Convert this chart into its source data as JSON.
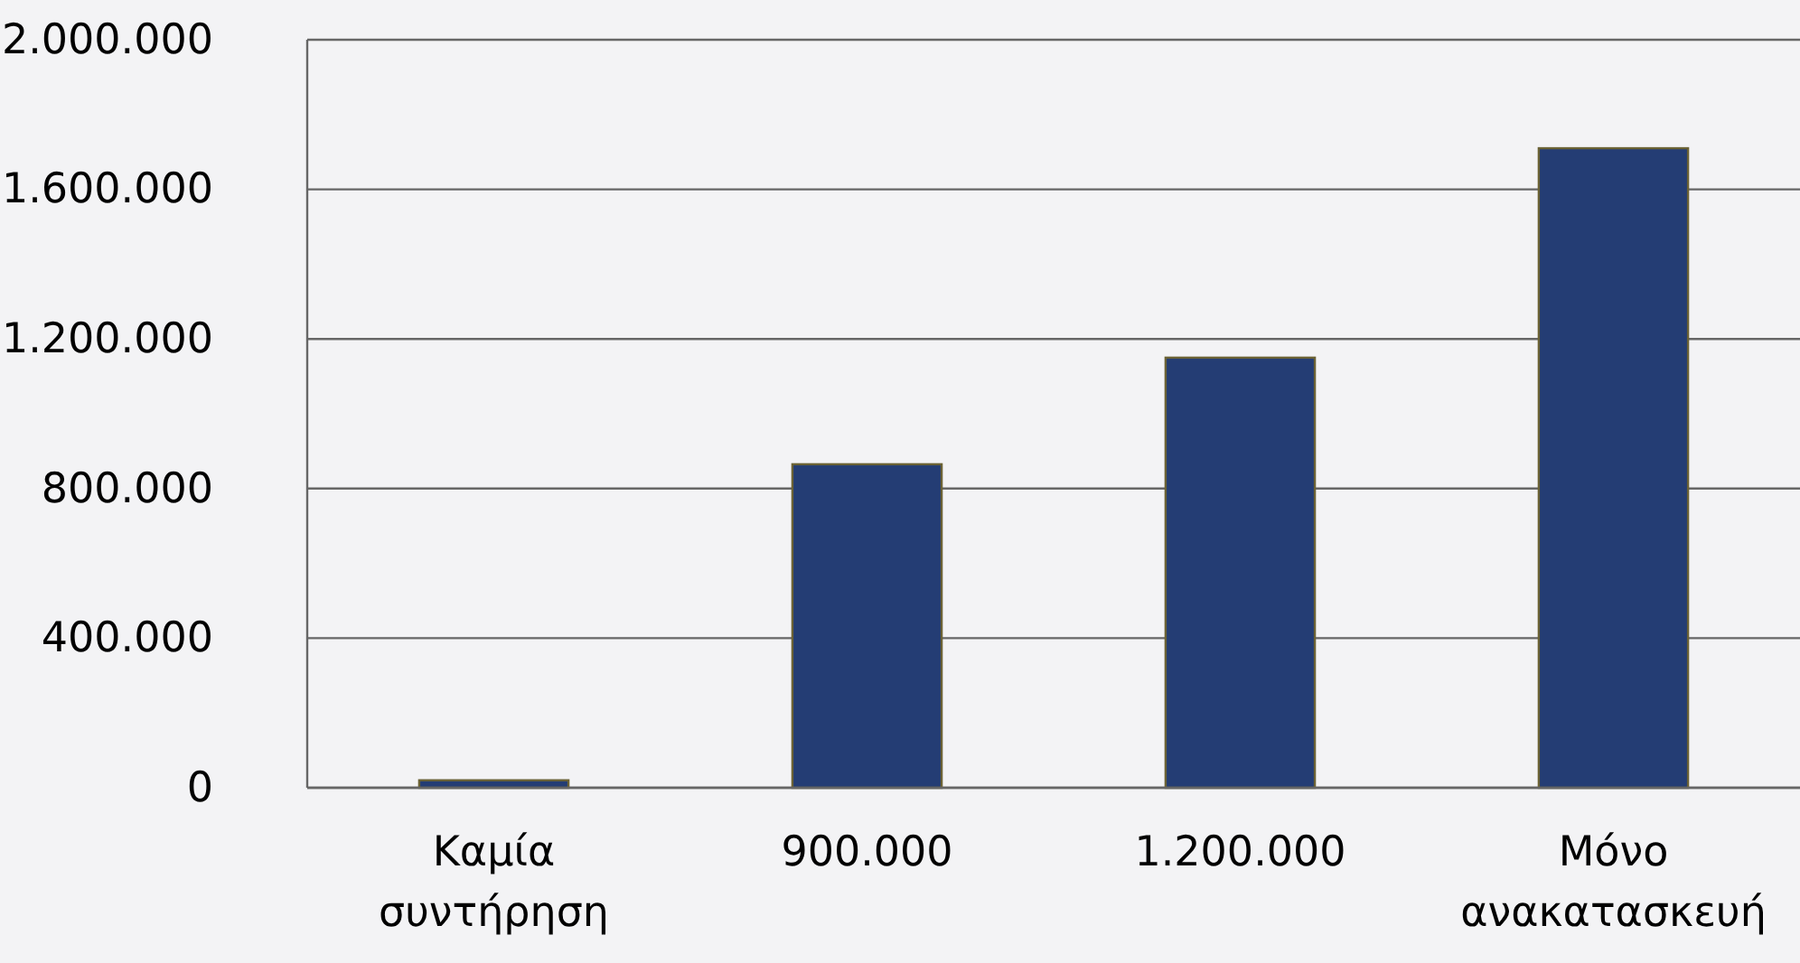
{
  "chart_data": {
    "type": "bar",
    "categories": [
      "Καμία συντήρηση",
      "900.000",
      "1.200.000",
      "Μόνο ανακατασκευή"
    ],
    "values": [
      20000,
      865000,
      1150000,
      1710000
    ],
    "color": "#243d74",
    "ylim": [
      0,
      2000000
    ],
    "yticks": [
      0,
      {
        "value": 400000,
        "label": "400.000"
      },
      {
        "value": 800000,
        "label": "800.000"
      },
      {
        "value": 1200000,
        "label": "1.200.000"
      },
      {
        "value": 1600000,
        "label": "1.600.000"
      },
      {
        "value": 2000000,
        "label": "2.000.000"
      }
    ],
    "grid": "y"
  }
}
